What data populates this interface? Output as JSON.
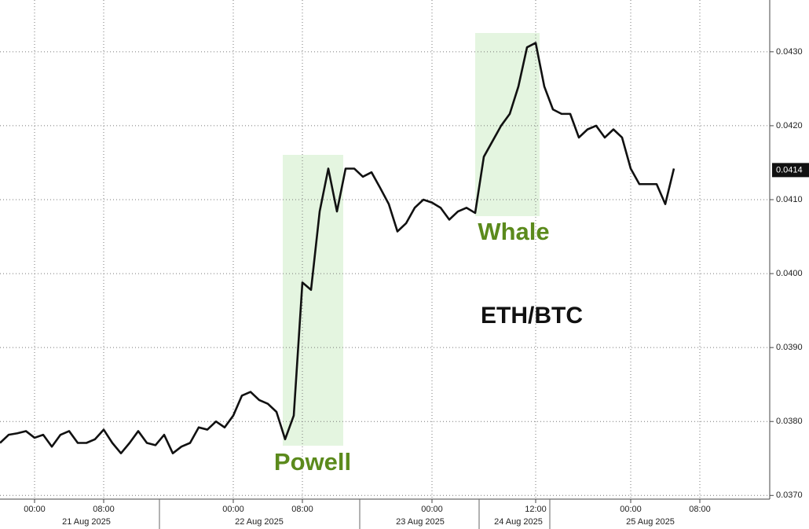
{
  "chart_data": {
    "type": "line",
    "title": "ETH/BTC",
    "annotations": [
      "Powell",
      "Whale"
    ],
    "color": "#111111",
    "categories": [
      null,
      null,
      null,
      null,
      "00:00",
      null,
      null,
      null,
      null,
      null,
      null,
      null,
      "08:00",
      null,
      null,
      null,
      null,
      null,
      null,
      null,
      null,
      null,
      null,
      null,
      null,
      null,
      null,
      "00:00",
      null,
      null,
      null,
      null,
      null,
      null,
      null,
      "08:00",
      null,
      null,
      null,
      null,
      null,
      null,
      null,
      null,
      null,
      null,
      null,
      null,
      null,
      null,
      "00:00",
      null,
      null,
      null,
      null,
      null,
      null,
      null,
      null,
      null,
      null,
      null,
      "12:00",
      null,
      null,
      null,
      null,
      null,
      null,
      null,
      null,
      null,
      null,
      "00:00",
      null,
      null,
      null,
      null,
      null,
      null,
      null,
      "08:00"
    ],
    "values": [
      0.03771,
      0.03782,
      0.03784,
      0.03787,
      0.03778,
      0.03782,
      0.03766,
      0.03782,
      0.03787,
      0.03771,
      0.03771,
      0.03776,
      0.03789,
      0.03771,
      0.03757,
      0.03771,
      0.03787,
      0.03771,
      0.03768,
      0.03782,
      0.03757,
      0.03766,
      0.03771,
      0.03792,
      0.03789,
      0.038,
      0.03792,
      0.03808,
      0.03835,
      0.0384,
      0.03829,
      0.03824,
      0.03813,
      0.03776,
      0.03808,
      0.03988,
      0.03978,
      0.04084,
      0.04142,
      0.04084,
      0.04142,
      0.04142,
      0.04131,
      0.04137,
      0.04116,
      0.04094,
      0.04057,
      0.04068,
      0.04089,
      0.041,
      0.04096,
      0.04089,
      0.04073,
      0.04084,
      0.04089,
      0.04082,
      0.04158,
      0.04179,
      0.042,
      0.04216,
      0.04253,
      0.04306,
      0.04312,
      0.04253,
      0.04222,
      0.04216,
      0.04216,
      0.04184,
      0.04195,
      0.042,
      0.04184,
      0.04195,
      0.04184,
      0.04142,
      0.04121,
      0.04121,
      0.04121,
      0.04094,
      0.04142,
      null,
      null,
      null
    ],
    "date_labels": [
      "21 Aug 2025",
      "22 Aug 2025",
      "23 Aug 2025",
      "24 Aug 2025",
      "25 Aug 2025"
    ],
    "ylim": [
      0.03695,
      0.0437
    ],
    "yticks": [
      {
        "value": 0.037,
        "label": "0.0370"
      },
      {
        "value": 0.038,
        "label": "0.0380"
      },
      {
        "value": 0.039,
        "label": "0.0390"
      },
      {
        "value": 0.04,
        "label": "0.0400"
      },
      {
        "value": 0.041,
        "label": "0.0410"
      },
      {
        "value": 0.042,
        "label": "0.0420"
      },
      {
        "value": 0.043,
        "label": "0.0430"
      }
    ],
    "last_value": {
      "value": 0.0414,
      "label": "0.0414"
    },
    "grid": true
  }
}
